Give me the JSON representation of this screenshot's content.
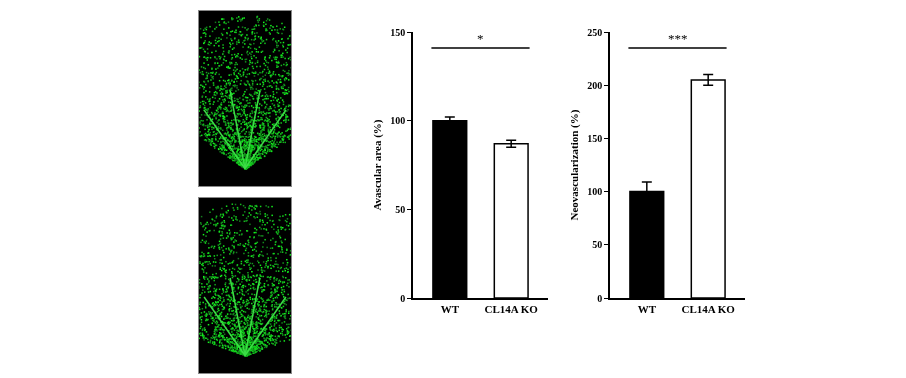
{
  "chart_data": [
    {
      "type": "bar",
      "y_label": "Avascular area (%)",
      "categories": [
        "WT",
        "CL14A KO"
      ],
      "values": [
        100,
        87
      ],
      "errors": [
        2,
        2
      ],
      "colors": [
        "#000000",
        "#ffffff"
      ],
      "ylim": [
        0,
        150
      ],
      "yticks": [
        0,
        50,
        100,
        150
      ],
      "annotations": [
        "*"
      ]
    },
    {
      "type": "bar",
      "y_label": "Neovascularization (%)",
      "categories": [
        "WT",
        "CL14A KO"
      ],
      "values": [
        100,
        205
      ],
      "errors": [
        9,
        5
      ],
      "colors": [
        "#000000",
        "#ffffff"
      ],
      "ylim": [
        0,
        250
      ],
      "yticks": [
        0,
        50,
        100,
        150,
        200,
        250
      ],
      "annotations": [
        "***"
      ]
    }
  ]
}
